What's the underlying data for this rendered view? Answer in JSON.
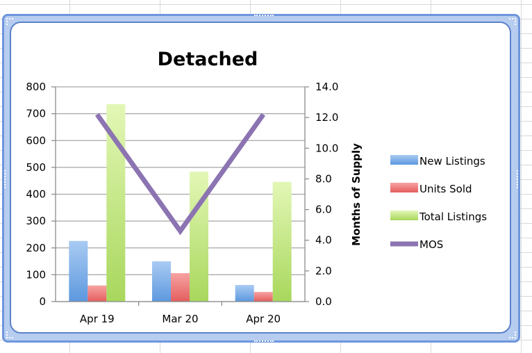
{
  "chart_data": {
    "type": "bar",
    "title": "Detached",
    "categories": [
      "Apr 19",
      "Mar 20",
      "Apr 20"
    ],
    "series": [
      {
        "name": "New Listings",
        "axis": "left",
        "type": "bar",
        "values": [
          226,
          150,
          62
        ],
        "color": "#7fb3ea"
      },
      {
        "name": "Units Sold",
        "axis": "left",
        "type": "bar",
        "values": [
          60,
          106,
          36
        ],
        "color": "#f27d7d"
      },
      {
        "name": "Total Listings",
        "axis": "left",
        "type": "bar",
        "values": [
          736,
          484,
          446
        ],
        "color": "#c6e985"
      },
      {
        "name": "MOS",
        "axis": "right",
        "type": "line",
        "values": [
          12.2,
          4.6,
          12.2
        ],
        "color": "#8c74b2"
      }
    ],
    "y_left": {
      "min": 0,
      "max": 800,
      "step": 100,
      "ticks": [
        "0",
        "100",
        "200",
        "300",
        "400",
        "500",
        "600",
        "700",
        "800"
      ]
    },
    "y_right": {
      "label": "Months of Supply",
      "min": 0,
      "max": 14,
      "step": 2,
      "ticks": [
        "0.0",
        "2.0",
        "4.0",
        "6.0",
        "8.0",
        "10.0",
        "12.0",
        "14.0"
      ]
    },
    "grid": true,
    "legend": "right"
  }
}
